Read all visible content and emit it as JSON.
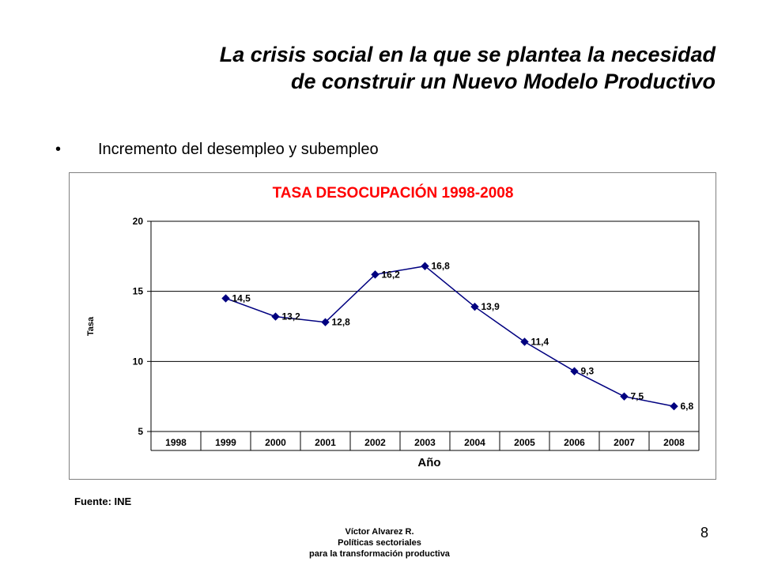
{
  "slide": {
    "title_line1": "La crisis social en la que se plantea la necesidad",
    "title_line2": "de construir un Nuevo Modelo Productivo",
    "bullet_symbol": "•",
    "bullet_text": "Incremento del desempleo y subempleo",
    "source": "Fuente: INE",
    "footer_line1": "Víctor Alvarez R.",
    "footer_line2": "Políticas sectoriales",
    "footer_line3": "para la transformación  productiva",
    "page_number": "8"
  },
  "chart_data": {
    "type": "line",
    "title": "TASA DESOCUPACIÓN 1998-2008",
    "title_color": "#ff0000",
    "xlabel": "Año",
    "ylabel": "Tasa",
    "categories": [
      "1998",
      "1999",
      "2000",
      "2001",
      "2002",
      "2003",
      "2004",
      "2005",
      "2006",
      "2007",
      "2008"
    ],
    "series": [
      {
        "values": [
          null,
          14.5,
          13.2,
          12.8,
          16.2,
          16.8,
          13.9,
          11.4,
          9.3,
          7.5,
          6.8
        ],
        "labels": [
          null,
          "14,5",
          "13,2",
          "12,8",
          "16,2",
          "16,8",
          "13,9",
          "11,4",
          "9,3",
          "7,5",
          "6,8"
        ],
        "color": "#000080"
      }
    ],
    "yticks": [
      5,
      10,
      15,
      20
    ],
    "ylim": [
      5,
      20
    ],
    "grid": true
  }
}
